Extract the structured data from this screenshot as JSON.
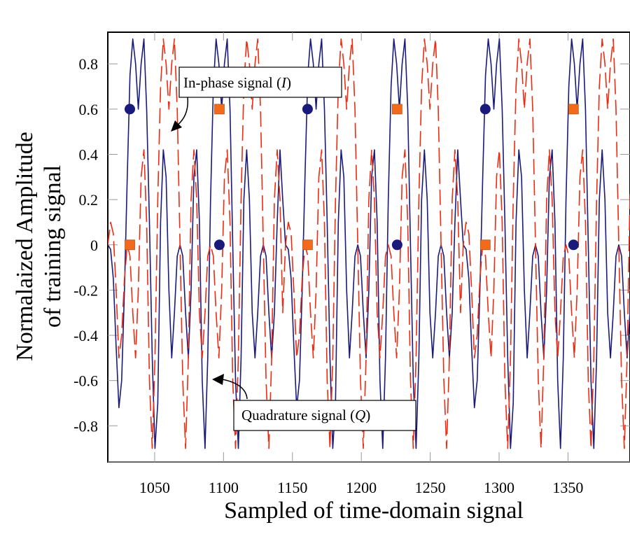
{
  "chart_data": {
    "type": "line",
    "title": "",
    "xlabel": "Sampled of time-domain signal",
    "ylabel_line1": "Normalaized Amplitude",
    "ylabel_line2": "of training signal",
    "xlim": [
      1016,
      1395
    ],
    "ylim": [
      -0.96,
      0.94
    ],
    "x_ticks": [
      1050,
      1100,
      1150,
      1200,
      1250,
      1300,
      1350
    ],
    "x_tick_labels": [
      "1050",
      "1100",
      "1150",
      "1200",
      "1250",
      "1300",
      "1350"
    ],
    "y_ticks": [
      0.8,
      0.6,
      0.4,
      0.2,
      0,
      -0.2,
      -0.4,
      -0.6,
      -0.8
    ],
    "y_tick_labels": [
      "0.8",
      "0.6",
      "0.4",
      "0.2",
      "0",
      "-0.2",
      "-0.4",
      "-0.6",
      "-0.8"
    ],
    "grid": false,
    "period_samples": 129,
    "series": [
      {
        "name": "In-phase signal (I)",
        "color": "#1a1a7a",
        "style": "solid",
        "start_x": 1016,
        "one_period_values": [
          0,
          -0.02,
          -0.15,
          -0.45,
          -0.72,
          -0.6,
          -0.2,
          0.3,
          0.75,
          0.91,
          0.8,
          0.6,
          0.8,
          0.91,
          0.6,
          0.1,
          -0.5,
          -0.9,
          -0.7,
          0.1,
          0.42,
          0.3,
          -0.2,
          -0.5,
          -0.3,
          -0.05,
          0,
          -0.05,
          -0.3,
          -0.5,
          -0.2,
          0.3,
          0.42,
          0.1,
          -0.6,
          -0.9,
          -0.5,
          0.2,
          0.7,
          0.91,
          0.8,
          0.6,
          0.8,
          0.91,
          0.6,
          0.0,
          -0.6,
          -0.9,
          -0.5,
          0.2,
          0.42,
          0.2,
          -0.3,
          -0.5,
          -0.3,
          -0.05,
          0,
          -0.05,
          -0.3,
          -0.5,
          -0.3,
          0.1,
          0.42,
          0.2
        ],
        "markers": {
          "shape": "circle",
          "color": "#1a1a7a",
          "points": [
            [
              1032,
              0.6
            ],
            [
              1097,
              0
            ],
            [
              1161,
              0.6
            ],
            [
              1226,
              0
            ],
            [
              1290,
              0.6
            ],
            [
              1354,
              0
            ]
          ]
        }
      },
      {
        "name": "Quadrature signal (Q)",
        "color": "#ee2a10",
        "style": "dashed",
        "start_x": 1016,
        "one_period_values": [
          0,
          0.1,
          0.05,
          -0.2,
          -0.5,
          -0.4,
          -0.15,
          0,
          -0.05,
          -0.3,
          -0.5,
          -0.2,
          0.3,
          0.42,
          0.1,
          -0.6,
          -0.9,
          -0.5,
          0.2,
          0.7,
          0.91,
          0.8,
          0.6,
          0.8,
          0.91,
          0.6,
          0.0,
          -0.6,
          -0.9,
          -0.5,
          0.2,
          0.42,
          0.2,
          -0.3,
          -0.5,
          -0.3,
          -0.05,
          0,
          -0.05,
          -0.3,
          -0.5,
          -0.2,
          0.3,
          0.42,
          0.1,
          -0.6,
          -0.9,
          -0.5,
          0.2,
          0.7,
          0.91,
          0.8,
          0.6,
          0.8,
          0.91,
          0.6,
          0.0,
          -0.6,
          -0.9,
          -0.5,
          0.2,
          0.42,
          0.2,
          -0.3
        ],
        "markers": {
          "shape": "square",
          "color": "#f26a1b",
          "points": [
            [
              1032,
              0
            ],
            [
              1097,
              0.6
            ],
            [
              1161,
              0
            ],
            [
              1226,
              0.6
            ],
            [
              1290,
              0
            ],
            [
              1354,
              0.6
            ]
          ]
        }
      }
    ],
    "annotations": [
      {
        "text": "In-phase signal (",
        "italic": "I",
        "close": ")",
        "points_to": [
          1062,
          0.55
        ]
      },
      {
        "text": "Quadrature signal (",
        "italic": "Q",
        "close": ")",
        "points_to": [
          1074,
          -0.6
        ]
      }
    ]
  }
}
